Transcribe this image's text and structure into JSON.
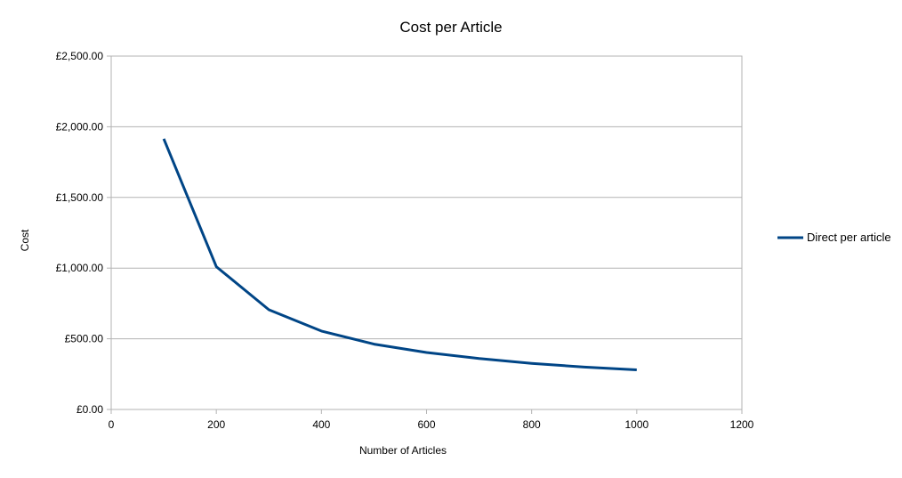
{
  "chart_data": {
    "type": "line",
    "title": "Cost per Article",
    "xlabel": "Number of Articles",
    "ylabel": "Cost",
    "xlim": [
      0,
      1200
    ],
    "ylim": [
      0,
      2500
    ],
    "xticks": [
      0,
      200,
      400,
      600,
      800,
      1000,
      1200
    ],
    "xtick_labels": [
      "0",
      "200",
      "400",
      "600",
      "800",
      "1000",
      "1200"
    ],
    "yticks": [
      0,
      500,
      1000,
      1500,
      2000,
      2500
    ],
    "ytick_labels": [
      "£0.00",
      "£500.00",
      "£1,000.00",
      "£1,500.00",
      "£2,000.00",
      "£2,500.00"
    ],
    "grid": "horizontal",
    "legend_position": "right",
    "series": [
      {
        "name": "Direct per article",
        "color": "#004586",
        "x": [
          100,
          200,
          300,
          400,
          500,
          600,
          700,
          800,
          900,
          1000
        ],
        "y": [
          1915,
          1010,
          705,
          555,
          462,
          403,
          360,
          326,
          300,
          280
        ]
      }
    ]
  }
}
